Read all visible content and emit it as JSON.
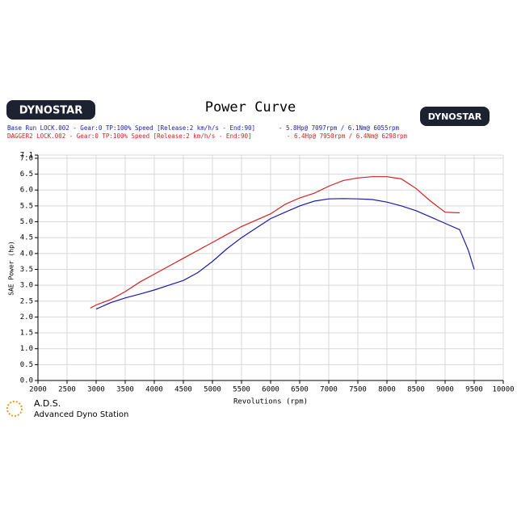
{
  "chart_data": {
    "type": "line",
    "title": "Power Curve",
    "logo": "DYNOSTAR",
    "brand": "A.D.S.",
    "brand_subtitle": "Advanced Dyno Station",
    "x_label": "Revolutions (rpm)",
    "y_label": "SAE Power (hp)",
    "xlim": [
      2000,
      10000
    ],
    "ylim": [
      0,
      7.1
    ],
    "grid": true,
    "xticks": [
      2000,
      2500,
      3000,
      3500,
      4000,
      4500,
      5000,
      5500,
      6000,
      6500,
      7000,
      7500,
      8000,
      8500,
      9000,
      9500,
      10000
    ],
    "yticks": [
      {
        "value": 0,
        "label": "0.0"
      },
      0.5,
      {
        "value": 1,
        "label": "1.0"
      },
      1.5,
      {
        "value": 2,
        "label": "2.0"
      },
      2.5,
      {
        "value": 3,
        "label": "3.0"
      },
      3.5,
      {
        "value": 4,
        "label": "4.0"
      },
      4.5,
      {
        "value": 5,
        "label": "5.0"
      },
      5.5,
      {
        "value": 6,
        "label": "6.0"
      },
      6.5,
      {
        "value": 7,
        "label": "7.0"
      },
      7.1
    ],
    "series": [
      {
        "name": "Base Run LOCK.002 - Gear:0 TP:100% Speed [Release:2 km/h/s - End:90]",
        "summary": "- 5.8Hp@ 7097rpm / 6.1Nm@ 6055rpm",
        "color": "#1a1aa8",
        "x": [
          3000,
          3250,
          3500,
          3750,
          4000,
          4250,
          4500,
          4750,
          5000,
          5250,
          5500,
          5750,
          6000,
          6250,
          6500,
          6750,
          7000,
          7250,
          7500,
          7750,
          8000,
          8250,
          8500,
          8750,
          9000,
          9250,
          9400,
          9500
        ],
        "values": [
          2.25,
          2.45,
          2.6,
          2.72,
          2.85,
          3.0,
          3.15,
          3.4,
          3.75,
          4.15,
          4.5,
          4.8,
          5.1,
          5.3,
          5.5,
          5.65,
          5.72,
          5.73,
          5.72,
          5.7,
          5.62,
          5.5,
          5.35,
          5.15,
          4.95,
          4.75,
          4.1,
          3.5
        ]
      },
      {
        "name": "DAGGER2 LOCK.002 - Gear:0 TP:100% Speed [Release:2 km/h/s - End:90]",
        "summary": "- 6.4Hp@ 7950rpm / 6.4Nm@ 6298rpm",
        "color": "#d42020",
        "x": [
          2900,
          3000,
          3250,
          3500,
          3750,
          4000,
          4250,
          4500,
          4750,
          5000,
          5250,
          5500,
          5750,
          6000,
          6250,
          6500,
          6750,
          7000,
          7250,
          7500,
          7750,
          8000,
          8250,
          8500,
          8750,
          9000,
          9250
        ],
        "values": [
          2.28,
          2.38,
          2.55,
          2.8,
          3.1,
          3.35,
          3.6,
          3.85,
          4.1,
          4.35,
          4.6,
          4.85,
          5.05,
          5.25,
          5.55,
          5.75,
          5.9,
          6.12,
          6.3,
          6.38,
          6.42,
          6.42,
          6.35,
          6.05,
          5.65,
          5.3,
          5.28
        ]
      }
    ]
  }
}
